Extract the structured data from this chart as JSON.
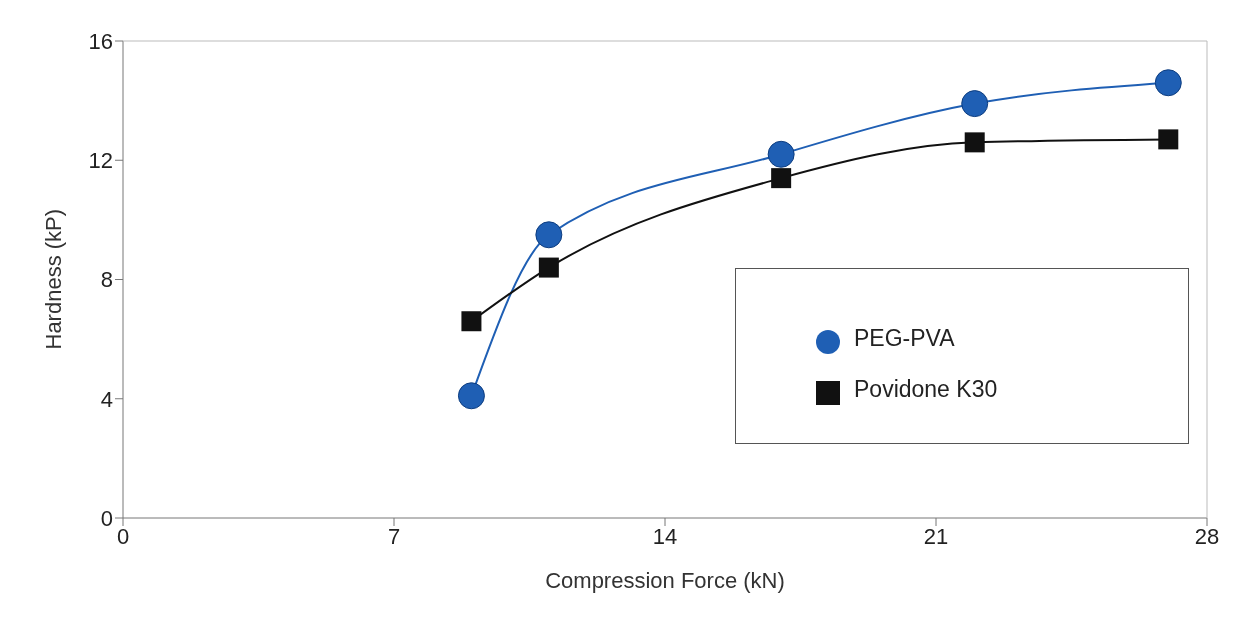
{
  "chart_data": {
    "type": "line",
    "xlabel": "Compression Force (kN)",
    "ylabel": "Hardness (kP)",
    "x": [
      9,
      11,
      17,
      22,
      27
    ],
    "series": [
      {
        "name": "PEG-PVA",
        "color": "#1f5fb4",
        "marker": "circle",
        "values": [
          4.1,
          9.5,
          12.2,
          13.9,
          14.6
        ]
      },
      {
        "name": "Povidone K30",
        "color": "#111111",
        "marker": "square",
        "values": [
          6.6,
          8.4,
          11.4,
          12.6,
          12.7
        ]
      }
    ],
    "xlim": [
      0,
      28
    ],
    "xticks": [
      0,
      7,
      14,
      21,
      28
    ],
    "ylim": [
      0,
      16
    ],
    "yticks": [
      0,
      4,
      8,
      12,
      16
    ],
    "legend": "right",
    "line_style": "solid"
  }
}
